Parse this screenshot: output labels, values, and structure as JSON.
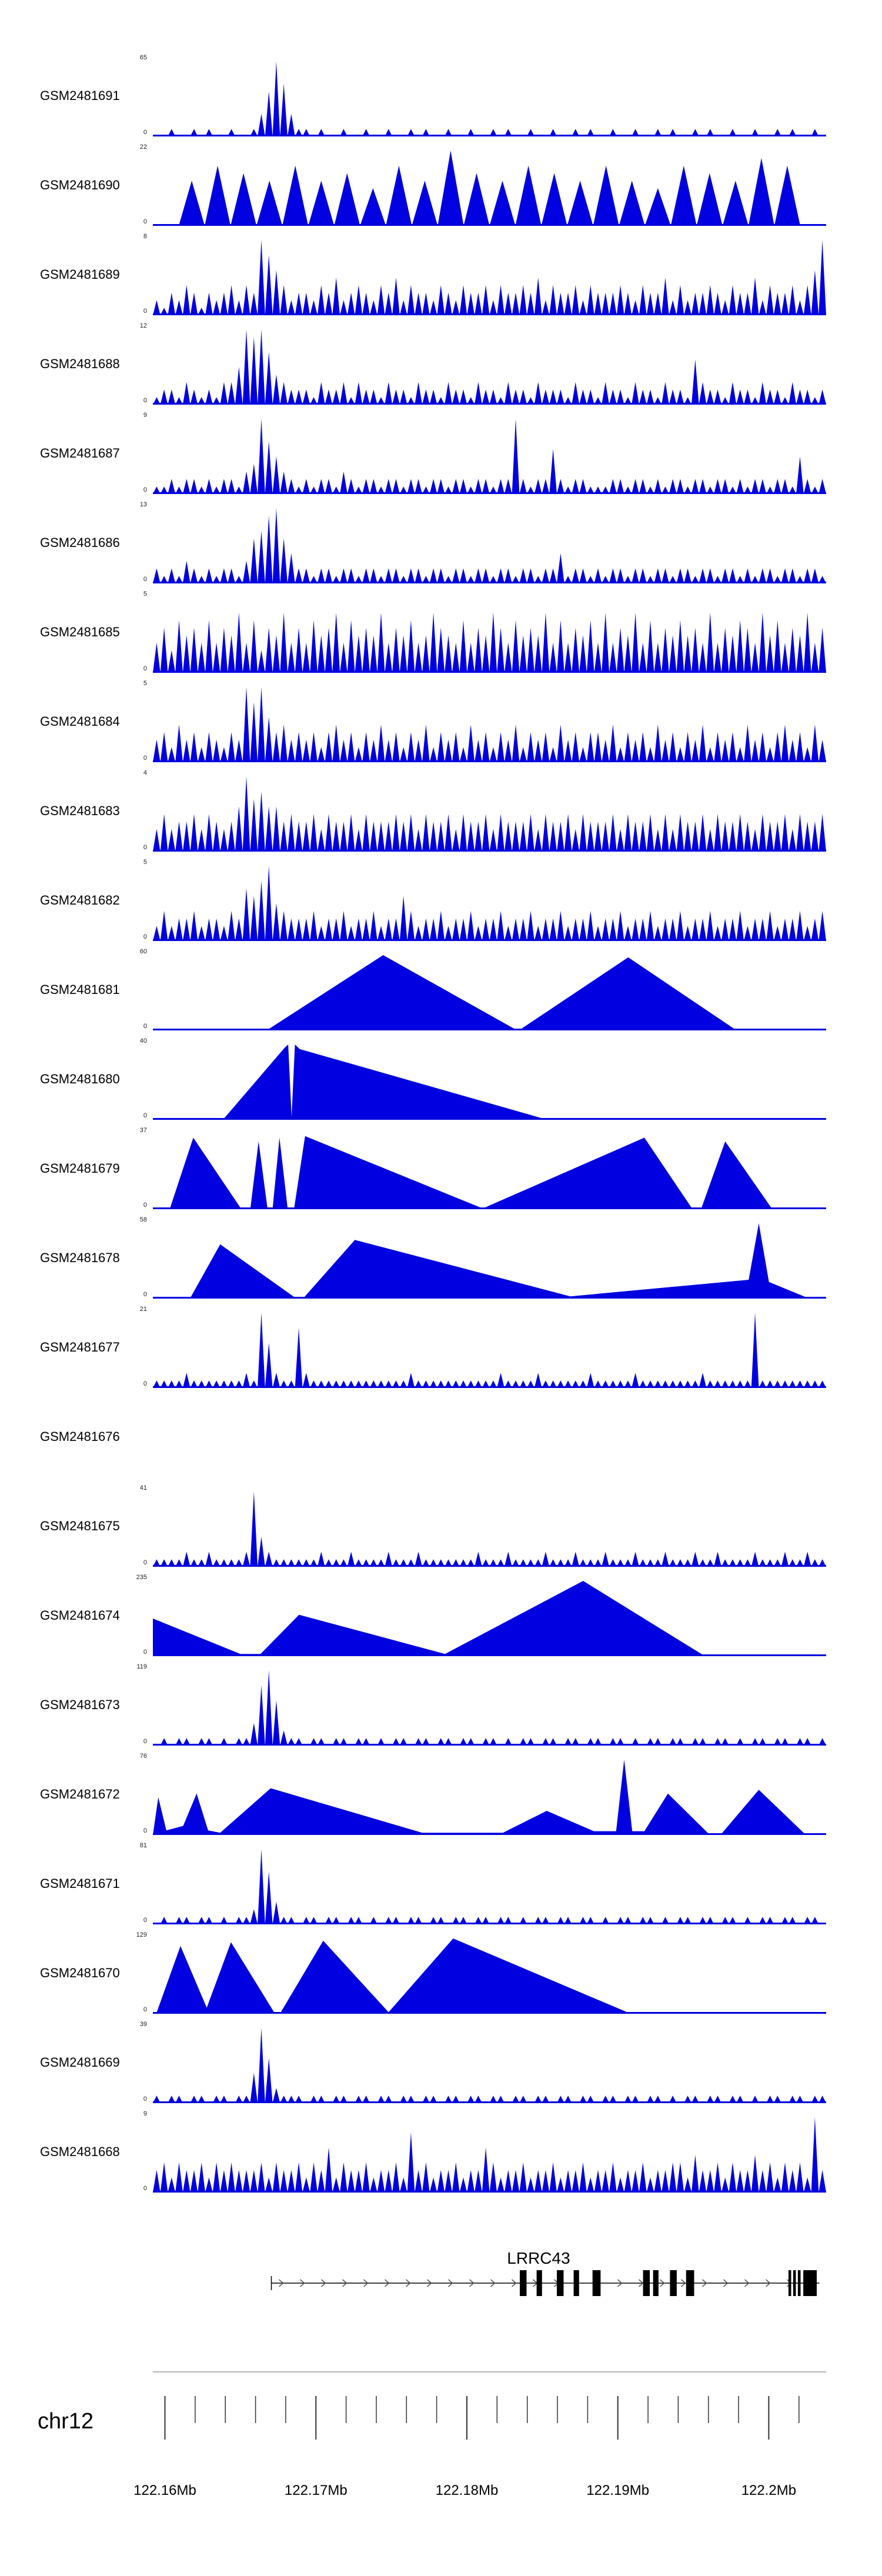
{
  "chart_data": {
    "type": "area",
    "title": "",
    "description": "Genome browser coverage tracks for 24 GEO samples over chr12 122.16-122.2 Mb with LRRC43 gene model",
    "color": "#0000e0",
    "x_axis": {
      "chrom": "chr12",
      "start_mb": 122.1592,
      "end_mb": 122.2038,
      "major_ticks_mb": [
        122.16,
        122.17,
        122.18,
        122.19,
        122.2
      ],
      "tick_labels": [
        "122.16Mb",
        "122.17Mb",
        "122.18Mb",
        "122.19Mb",
        "122.2Mb"
      ],
      "minor_step_mb": 0.002
    },
    "gene_track": {
      "gene": "LRRC43",
      "strand": "+",
      "line_start": 0.176,
      "line_end": 0.99,
      "label_pos": 0.573,
      "exons": [
        [
          0.545,
          0.01
        ],
        [
          0.57,
          0.008
        ],
        [
          0.6,
          0.01
        ],
        [
          0.625,
          0.008
        ],
        [
          0.653,
          0.012
        ],
        [
          0.728,
          0.01
        ],
        [
          0.743,
          0.008
        ],
        [
          0.768,
          0.01
        ],
        [
          0.792,
          0.012
        ],
        [
          0.944,
          0.004
        ],
        [
          0.951,
          0.004
        ],
        [
          0.958,
          0.004
        ],
        [
          0.966,
          0.02
        ]
      ]
    },
    "tracks": [
      {
        "label": "GSM2481691",
        "ymin": 0,
        "ymax": 65,
        "kind": "spikes",
        "values": [
          "0010010100",
          "100136A731",
          "1010010010",
          "0100101001",
          "0010010100",
          "1001001010",
          "0100100101",
          "0010100100",
          "1001010010"
        ]
      },
      {
        "label": "GSM2481690",
        "ymin": 0,
        "ymax": 22,
        "kind": "spikes",
        "values": [
          "0687686758",
          "6A76876865",
          "876980"
        ]
      },
      {
        "label": "GSM2481689",
        "ymin": 0,
        "ymax": 8,
        "kind": "spikes",
        "values": [
          "2132431323",
          "4243A86423",
          "3243523432",
          "4352433243",
          "2433424334",
          "3524334243",
          "3343243352",
          "4233432433",
          "524334246A"
        ]
      },
      {
        "label": "GSM2481688",
        "ymin": 0,
        "ymax": 12,
        "kind": "spikes",
        "values": [
          "1221321213",
          "35A9A74322",
          "2132231322",
          "1322132213",
          "2213221322",
          "1322213221",
          "3221322132",
          "2163221322",
          "1322132212"
        ]
      },
      {
        "label": "GSM2481687",
        "ymin": 0,
        "ymax": 9,
        "kind": "spikes",
        "values": [
          "1121221212",
          "2134A75321",
          "2122132122",
          "1221221221",
          "22122122A2",
          "1226212211",
          "1221221212",
          "2122122121",
          "2212215212"
        ]
      },
      {
        "label": "GSM2481686",
        "ymin": 0,
        "ymax": 13,
        "kind": "spikes",
        "values": [
          "2121321212",
          "213679A642",
          "2122122122",
          "1221221221",
          "2212212212",
          "2122412212",
          "1221221221",
          "2212212212",
          "1221221221"
        ]
      },
      {
        "label": "GSM2481685",
        "ymin": 0,
        "ymax": 5,
        "kind": "spikes",
        "values": [
          "4637564746",
          "5847365846",
          "4756847565",
          "8465745865",
          "4746586475",
          "6584746574",
          "8465847465",
          "7564846576",
          "4857465846"
        ]
      },
      {
        "label": "GSM2481684",
        "ymin": 0,
        "ymax": 5,
        "kind": "spikes",
        "values": [
          "3425342432",
          "43A8A64534",
          "3424534243",
          "5342435243",
          "4253424352",
          "4342534244",
          "3524342534",
          "2435243425",
          "3424534253"
        ]
      },
      {
        "label": "GSM2481683",
        "ymin": 0,
        "ymax": 4,
        "kind": "spikes",
        "values": [
          "3534453543",
          "46A7866454",
          "4535445354",
          "4454535445",
          "3544535444",
          "5354453544",
          "4535445353",
          "5445354454",
          "3544535445"
        ]
      },
      {
        "label": "GSM2481682",
        "ymin": 0,
        "ymax": 5,
        "kind": "spikes",
        "values": [
          "2423342332",
          "43768A5433",
          "3423342334",
          "2336423342",
          "3342334233",
          "4233423342",
          "3342334233",
          "4233423342",
          "3342334234"
        ]
      },
      {
        "label": "GSM2481681",
        "ymin": 0,
        "ymax": 60,
        "kind": "polygon",
        "points": [
          [
            0,
            0
          ],
          [
            0.169,
            0
          ],
          [
            0.342,
            1
          ],
          [
            0.537,
            0.02
          ],
          [
            0.547,
            0.02
          ],
          [
            0.706,
            0.97
          ],
          [
            0.867,
            0
          ],
          [
            1,
            0
          ]
        ]
      },
      {
        "label": "GSM2481680",
        "ymin": 0,
        "ymax": 40,
        "kind": "polygon",
        "points": [
          [
            0,
            0
          ],
          [
            0.104,
            0
          ],
          [
            0.196,
            0.96
          ],
          [
            0.201,
            1
          ],
          [
            0.206,
            0.04
          ],
          [
            0.211,
            1
          ],
          [
            0.218,
            0.94
          ],
          [
            0.586,
            0
          ],
          [
            1,
            0
          ]
        ]
      },
      {
        "label": "GSM2481679",
        "ymin": 0,
        "ymax": 37,
        "kind": "polygon",
        "points": [
          [
            0,
            0
          ],
          [
            0.025,
            0
          ],
          [
            0.06,
            0.95
          ],
          [
            0.13,
            0.02
          ],
          [
            0.145,
            0.02
          ],
          [
            0.157,
            0.9
          ],
          [
            0.17,
            0.02
          ],
          [
            0.178,
            0.02
          ],
          [
            0.188,
            0.95
          ],
          [
            0.2,
            0.02
          ],
          [
            0.21,
            0.02
          ],
          [
            0.226,
            0.97
          ],
          [
            0.49,
            0.01
          ],
          [
            0.73,
            0.95
          ],
          [
            0.8,
            0.02
          ],
          [
            0.815,
            0.02
          ],
          [
            0.85,
            0.9
          ],
          [
            0.92,
            0
          ],
          [
            1,
            0
          ]
        ]
      },
      {
        "label": "GSM2481678",
        "ymin": 0,
        "ymax": 58,
        "kind": "polygon",
        "points": [
          [
            0,
            0
          ],
          [
            0.055,
            0
          ],
          [
            0.1,
            0.72
          ],
          [
            0.21,
            0.02
          ],
          [
            0.225,
            0.02
          ],
          [
            0.3,
            0.78
          ],
          [
            0.62,
            0.03
          ],
          [
            0.885,
            0.25
          ],
          [
            0.9,
            1
          ],
          [
            0.915,
            0.22
          ],
          [
            0.975,
            0
          ],
          [
            1,
            0
          ]
        ]
      },
      {
        "label": "GSM2481677",
        "ymin": 0,
        "ymax": 21,
        "kind": "spikes",
        "values": [
          "1111211111",
          "1121A62118",
          "2111111111",
          "1111211111",
          "1111112111",
          "1211111121",
          "1111211111",
          "1112111111",
          "A111111111"
        ]
      },
      {
        "label": "GSM2481676",
        "kind": "empty"
      },
      {
        "label": "GSM2481675",
        "ymin": 0,
        "ymax": 41,
        "kind": "spikes",
        "values": [
          "1111211211",
          "112A421111",
          "1121112111",
          "1211121111",
          "1112111211",
          "1121112111",
          "2111211121",
          "1121121111",
          "2111211211"
        ]
      },
      {
        "label": "GSM2481674",
        "ymin": 0,
        "ymax": 235,
        "kind": "polygon",
        "points": [
          [
            0,
            0.5
          ],
          [
            0.13,
            0.03
          ],
          [
            0.16,
            0.03
          ],
          [
            0.217,
            0.55
          ],
          [
            0.434,
            0.03
          ],
          [
            0.639,
            1
          ],
          [
            0.82,
            0
          ],
          [
            1,
            0
          ]
        ]
      },
      {
        "label": "GSM2481673",
        "ymin": 0,
        "ymax": 119,
        "kind": "spikes",
        "values": [
          "0101101101",
          "01138A6211",
          "0110110110",
          "1011011011",
          "0110110101",
          "1011011011",
          "0110101101",
          "1011011010",
          "1101101101"
        ]
      },
      {
        "label": "GSM2481672",
        "ymin": 0,
        "ymax": 76,
        "kind": "polygon",
        "points": [
          [
            0,
            0
          ],
          [
            0.008,
            0.5
          ],
          [
            0.02,
            0.06
          ],
          [
            0.045,
            0.12
          ],
          [
            0.065,
            0.55
          ],
          [
            0.082,
            0.06
          ],
          [
            0.1,
            0.03
          ],
          [
            0.175,
            0.62
          ],
          [
            0.4,
            0.03
          ],
          [
            0.52,
            0.03
          ],
          [
            0.585,
            0.32
          ],
          [
            0.655,
            0.05
          ],
          [
            0.688,
            0.05
          ],
          [
            0.7,
            1
          ],
          [
            0.712,
            0.05
          ],
          [
            0.73,
            0.05
          ],
          [
            0.765,
            0.55
          ],
          [
            0.825,
            0.02
          ],
          [
            0.845,
            0.02
          ],
          [
            0.9,
            0.6
          ],
          [
            0.97,
            0
          ],
          [
            1,
            0
          ]
        ]
      },
      {
        "label": "GSM2481671",
        "ymin": 0,
        "ymax": 81,
        "kind": "spikes",
        "values": [
          "0101101101",
          "0112A73110",
          "1101101101",
          "0110110110",
          "1101101101",
          "0110110110",
          "1011011010",
          "1101101101",
          "0110110110"
        ]
      },
      {
        "label": "GSM2481670",
        "ymin": 0,
        "ymax": 129,
        "kind": "polygon",
        "points": [
          [
            0,
            0
          ],
          [
            0.005,
            0
          ],
          [
            0.041,
            0.9
          ],
          [
            0.08,
            0.08
          ],
          [
            0.116,
            0.95
          ],
          [
            0.18,
            0.02
          ],
          [
            0.19,
            0.02
          ],
          [
            0.253,
            0.97
          ],
          [
            0.35,
            0.02
          ],
          [
            0.446,
            1
          ],
          [
            0.71,
            0
          ],
          [
            1,
            0
          ]
        ]
      },
      {
        "label": "GSM2481669",
        "ymin": 0,
        "ymax": 39,
        "kind": "spikes",
        "values": [
          "1011011011",
          "0114A62111",
          "0110110110",
          "1101101101",
          "1011011011",
          "0110110110",
          "1101101101",
          "0110110110",
          "1011011011"
        ]
      },
      {
        "label": "GSM2481668",
        "ymin": 0,
        "ymax": 9,
        "kind": "spikes",
        "values": [
          "3424334243",
          "4333424334",
          "2436243342",
          "3342834233",
          "4233642334",
          "2334233423",
          "3423342334",
          "4253342433",
          "53424342A3"
        ]
      }
    ]
  }
}
